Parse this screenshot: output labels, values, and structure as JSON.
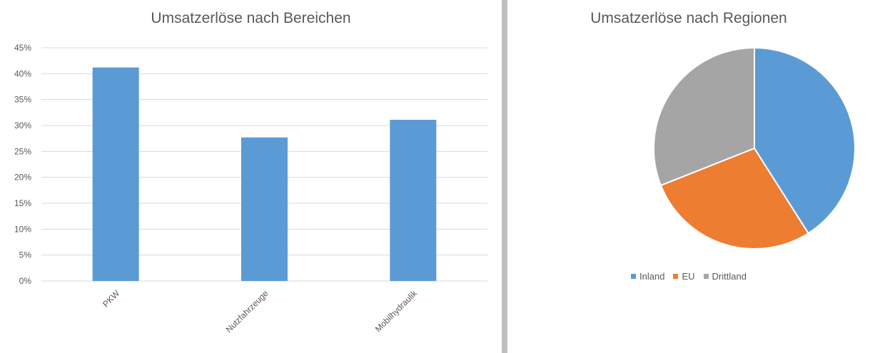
{
  "chart_data": [
    {
      "type": "bar",
      "title": "Umsatzerlöse nach Bereichen",
      "categories": [
        "PKW",
        "Nutzfahrzeuge",
        "Mobilhydraulik"
      ],
      "values": [
        41.2,
        27.7,
        31.1
      ],
      "ylim": [
        0,
        45
      ],
      "yticks": [
        "0%",
        "5%",
        "10%",
        "15%",
        "20%",
        "25%",
        "30%",
        "35%",
        "40%",
        "45%"
      ],
      "xlabel": "",
      "ylabel": "",
      "grid": true,
      "bar_color": "#5b9bd5"
    },
    {
      "type": "pie",
      "title": "Umsatzerlöse nach Regionen",
      "labels": [
        "Inland",
        "EU",
        "Drittland"
      ],
      "values": [
        41,
        28,
        31
      ],
      "colors": [
        "#5b9bd5",
        "#ed7d31",
        "#a5a5a5"
      ],
      "legend": "bottom"
    }
  ]
}
